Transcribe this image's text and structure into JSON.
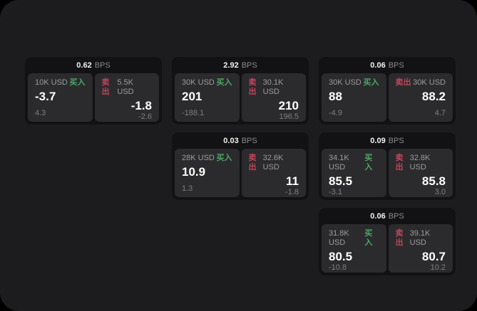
{
  "labels": {
    "bps_suffix": "BPS",
    "buy": "买入",
    "sell": "卖出"
  },
  "colors": {
    "buy": "#4ca764",
    "sell": "#be465a",
    "surface": "#1c1c1e",
    "card": "#121214",
    "panel": "#2b2b2d"
  },
  "cards": [
    {
      "bps": "0.62",
      "buy": {
        "size": "10K USD",
        "value": "-3.7",
        "delta": "4.3"
      },
      "sell": {
        "size": "5.5K USD",
        "value": "-1.8",
        "delta": "-2.6"
      }
    },
    {
      "bps": "2.92",
      "buy": {
        "size": "30K USD",
        "value": "201",
        "delta": "-188.1"
      },
      "sell": {
        "size": "30.1K USD",
        "value": "210",
        "delta": "196.5"
      }
    },
    {
      "bps": "0.06",
      "buy": {
        "size": "30K USD",
        "value": "88",
        "delta": "-4.9"
      },
      "sell": {
        "size": "30K USD",
        "value": "88.2",
        "delta": "4.7"
      }
    },
    {
      "bps": "0.03",
      "buy": {
        "size": "28K USD",
        "value": "10.9",
        "delta": "1.3"
      },
      "sell": {
        "size": "32.6K USD",
        "value": "11",
        "delta": "-1.8"
      }
    },
    {
      "bps": "0.09",
      "buy": {
        "size": "34.1K USD",
        "value": "85.5",
        "delta": "-3.1"
      },
      "sell": {
        "size": "32.8K USD",
        "value": "85.8",
        "delta": "3.0"
      }
    },
    {
      "bps": "0.06",
      "buy": {
        "size": "31.8K USD",
        "value": "80.5",
        "delta": "-10.8"
      },
      "sell": {
        "size": "39.1K USD",
        "value": "80.7",
        "delta": "10.2"
      }
    }
  ]
}
